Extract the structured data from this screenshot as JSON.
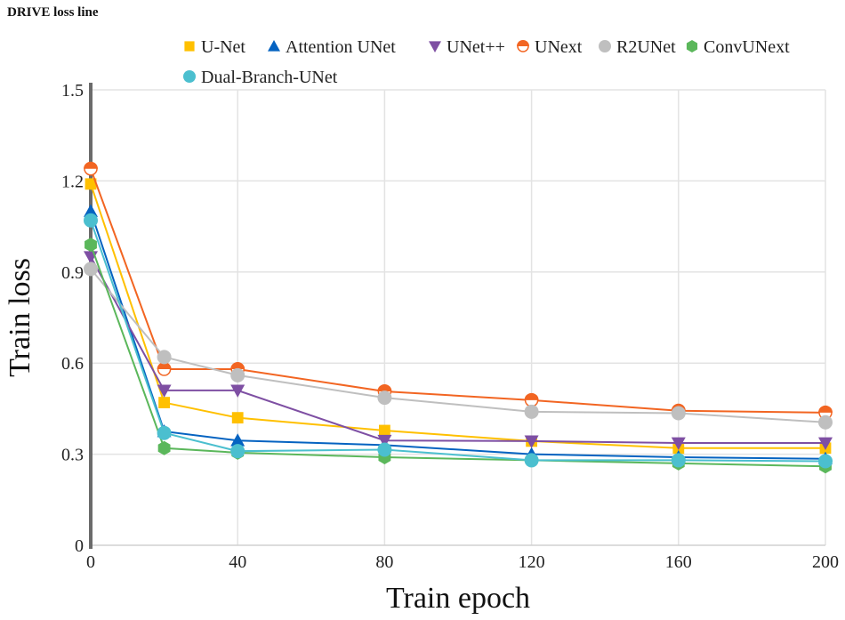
{
  "chart_data": {
    "type": "line",
    "title": "DRIVE loss line",
    "xlabel": "Train epoch",
    "ylabel": "Train loss",
    "xlim": [
      0,
      200
    ],
    "ylim": [
      0,
      1.5
    ],
    "xticks": [
      "0",
      "40",
      "80",
      "120",
      "160",
      "200"
    ],
    "yticks": [
      "0",
      "0.3",
      "0.6",
      "0.9",
      "1.2",
      "1.5"
    ],
    "grid": true,
    "legend": "top",
    "x": [
      0,
      20,
      40,
      80,
      120,
      160,
      200
    ],
    "series": [
      {
        "name": "U-Net",
        "color": "#FFC000",
        "marker": "square",
        "values": [
          1.19,
          0.47,
          0.42,
          0.378,
          0.343,
          0.32,
          0.32
        ]
      },
      {
        "name": "Attention UNet",
        "color": "#0563C1",
        "marker": "triangle-up",
        "values": [
          1.1,
          0.375,
          0.345,
          0.33,
          0.3,
          0.29,
          0.285
        ]
      },
      {
        "name": "UNet++",
        "color": "#7E4FA3",
        "marker": "triangle-down",
        "values": [
          0.95,
          0.51,
          0.51,
          0.345,
          0.343,
          0.337,
          0.337
        ]
      },
      {
        "name": "UNext",
        "color": "#F26522",
        "marker": "half-circle",
        "values": [
          1.24,
          0.58,
          0.58,
          0.507,
          0.478,
          0.443,
          0.437
        ]
      },
      {
        "name": "R2UNet",
        "color": "#BFBFBF",
        "marker": "circle",
        "values": [
          0.91,
          0.62,
          0.56,
          0.486,
          0.44,
          0.435,
          0.405
        ]
      },
      {
        "name": "ConvUNext",
        "color": "#5BB75B",
        "marker": "hexagon",
        "values": [
          0.99,
          0.32,
          0.305,
          0.29,
          0.28,
          0.27,
          0.26
        ]
      },
      {
        "name": "Dual-Branch-UNet",
        "color": "#4BBFCF",
        "marker": "circle",
        "values": [
          1.07,
          0.37,
          0.31,
          0.315,
          0.28,
          0.28,
          0.277
        ]
      }
    ]
  }
}
